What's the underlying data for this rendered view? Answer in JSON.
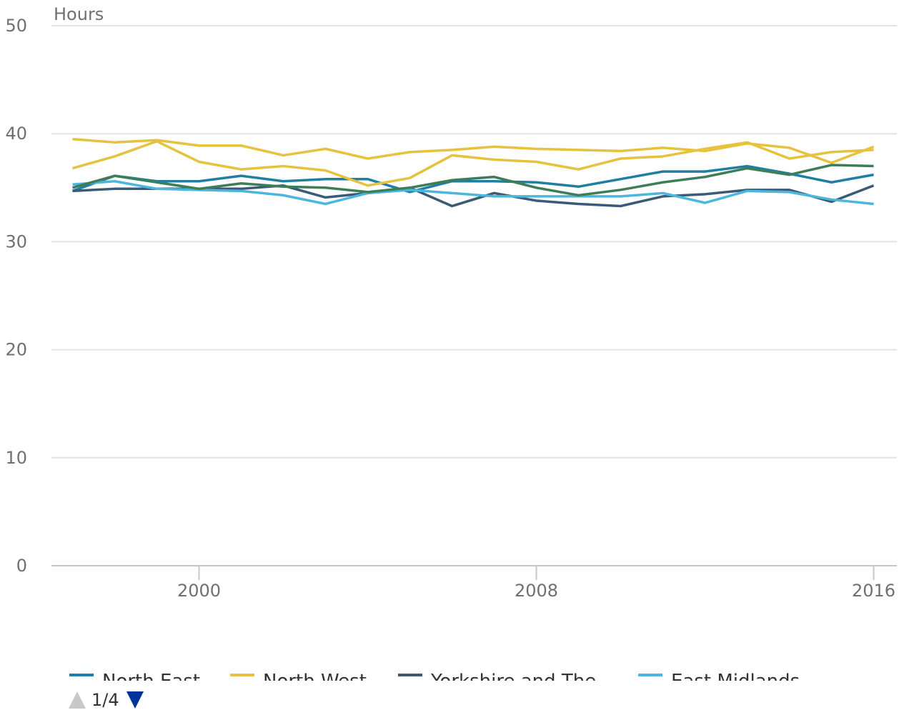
{
  "chart_data": {
    "type": "line",
    "y_label": "Hours",
    "x": [
      1997,
      1998,
      1999,
      2000,
      2001,
      2002,
      2003,
      2004,
      2005,
      2006,
      2007,
      2008,
      2009,
      2010,
      2011,
      2012,
      2013,
      2014,
      2015,
      2016
    ],
    "xlim": [
      1996.5,
      2016.55
    ],
    "xticks": [
      2000,
      2008,
      2016
    ],
    "ylim": [
      0,
      50
    ],
    "yticks": [
      0,
      10,
      20,
      30,
      40,
      50
    ],
    "grid": true,
    "series": [
      {
        "name": "North East",
        "color": "#1f7fa3",
        "values": [
          34.7,
          36.1,
          35.6,
          35.6,
          36.1,
          35.6,
          35.8,
          35.8,
          34.6,
          35.6,
          35.6,
          35.5,
          35.1,
          35.8,
          36.5,
          36.5,
          37.0,
          36.3,
          35.5,
          36.2
        ]
      },
      {
        "name": "North West",
        "color": "#e6c23e",
        "values": [
          36.8,
          37.9,
          39.3,
          37.4,
          36.7,
          37.0,
          36.6,
          35.2,
          35.9,
          38.0,
          37.6,
          37.4,
          36.7,
          37.7,
          37.9,
          38.6,
          39.2,
          37.7,
          38.3,
          38.5
        ]
      },
      {
        "name": "Yorkshire and The",
        "color": "#3a5a78",
        "values": [
          34.7,
          34.9,
          34.9,
          34.9,
          34.9,
          35.2,
          34.1,
          34.5,
          35.0,
          33.3,
          34.5,
          33.8,
          33.5,
          33.3,
          34.2,
          34.4,
          34.8,
          34.8,
          33.7,
          35.2
        ]
      },
      {
        "name": "East Midlands",
        "color": "#4cb6dc",
        "values": [
          35.3,
          35.6,
          34.9,
          34.8,
          34.7,
          34.3,
          33.5,
          34.5,
          34.8,
          34.5,
          34.2,
          34.2,
          34.2,
          34.2,
          34.5,
          33.6,
          34.7,
          34.6,
          33.9,
          33.5
        ]
      },
      {
        "color": "#e6c23e",
        "values": [
          39.5,
          39.2,
          39.4,
          38.9,
          38.9,
          38.0,
          38.6,
          37.7,
          38.3,
          38.5,
          38.8,
          38.6,
          38.5,
          38.4,
          38.7,
          38.4,
          39.1,
          38.7,
          37.3,
          38.8
        ]
      },
      {
        "color": "#3d7d58",
        "values": [
          35.0,
          36.1,
          35.5,
          34.9,
          35.4,
          35.1,
          35.0,
          34.6,
          35.0,
          35.7,
          36.0,
          35.0,
          34.3,
          34.8,
          35.5,
          36.0,
          36.8,
          36.2,
          37.1,
          37.0
        ]
      }
    ]
  },
  "legend_pager": "1/4"
}
